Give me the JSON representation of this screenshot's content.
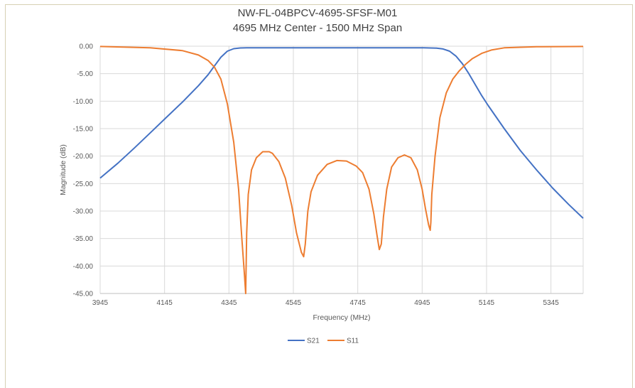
{
  "chart_data": {
    "type": "line",
    "title": "NW-FL-04BPCV-4695-SFSF-M01",
    "subtitle": "4695 MHz Center - 1500 MHz Span",
    "xlabel": "Frequency (MHz)",
    "ylabel": "Magnitude (dB)",
    "xlim": [
      3945,
      5445
    ],
    "ylim": [
      -45,
      0
    ],
    "x_ticks": [
      3945,
      4145,
      4345,
      4545,
      4745,
      4945,
      5145,
      5345
    ],
    "y_ticks": [
      "0.00",
      "-5.00",
      "-10.00",
      "-15.00",
      "-20.00",
      "-25.00",
      "-30.00",
      "-35.00",
      "-40.00",
      "-45.00"
    ],
    "grid": true,
    "legend_position": "bottom",
    "series": [
      {
        "name": "S21",
        "color": "#4472c4",
        "x": [
          3945,
          4000,
          4050,
          4100,
          4150,
          4200,
          4250,
          4280,
          4300,
          4320,
          4340,
          4360,
          4380,
          4400,
          4450,
          4500,
          4600,
          4700,
          4800,
          4900,
          4950,
          4990,
          5010,
          5030,
          5050,
          5070,
          5090,
          5110,
          5130,
          5150,
          5200,
          5250,
          5300,
          5350,
          5400,
          5445
        ],
        "y": [
          -24.0,
          -21.3,
          -18.6,
          -15.8,
          -13.0,
          -10.2,
          -7.2,
          -5.2,
          -3.6,
          -2.0,
          -0.9,
          -0.45,
          -0.32,
          -0.3,
          -0.3,
          -0.3,
          -0.3,
          -0.3,
          -0.3,
          -0.3,
          -0.3,
          -0.35,
          -0.5,
          -0.9,
          -1.8,
          -3.2,
          -5.0,
          -7.0,
          -9.0,
          -10.8,
          -15.0,
          -19.0,
          -22.5,
          -25.8,
          -28.8,
          -31.3
        ]
      },
      {
        "name": "S11",
        "color": "#ed7d31",
        "x": [
          3945,
          4100,
          4200,
          4250,
          4280,
          4300,
          4320,
          4340,
          4360,
          4375,
          4385,
          4393,
          4397,
          4400,
          4405,
          4415,
          4430,
          4450,
          4470,
          4480,
          4500,
          4520,
          4540,
          4555,
          4570,
          4577,
          4582,
          4590,
          4600,
          4620,
          4650,
          4680,
          4710,
          4740,
          4760,
          4780,
          4795,
          4805,
          4812,
          4818,
          4825,
          4835,
          4850,
          4870,
          4890,
          4910,
          4930,
          4945,
          4955,
          4965,
          4970,
          4972,
          4975,
          4985,
          5000,
          5020,
          5040,
          5060,
          5080,
          5100,
          5130,
          5160,
          5200,
          5300,
          5445
        ],
        "y": [
          -0.05,
          -0.3,
          -0.8,
          -1.6,
          -2.6,
          -3.8,
          -6.0,
          -10.5,
          -17.5,
          -26.0,
          -35.0,
          -41.5,
          -45.0,
          -34.0,
          -27.0,
          -22.5,
          -20.3,
          -19.2,
          -19.2,
          -19.5,
          -21.0,
          -24.0,
          -29.0,
          -34.0,
          -37.5,
          -38.3,
          -36.0,
          -30.0,
          -26.5,
          -23.5,
          -21.5,
          -20.8,
          -20.9,
          -21.8,
          -23.0,
          -26.0,
          -30.5,
          -34.5,
          -37.0,
          -36.0,
          -31.0,
          -26.0,
          -22.0,
          -20.3,
          -19.8,
          -20.3,
          -22.5,
          -26.0,
          -29.5,
          -32.5,
          -33.5,
          -32.0,
          -27.0,
          -20.0,
          -13.0,
          -8.5,
          -6.0,
          -4.5,
          -3.3,
          -2.3,
          -1.3,
          -0.7,
          -0.3,
          -0.1,
          -0.05
        ]
      }
    ]
  }
}
